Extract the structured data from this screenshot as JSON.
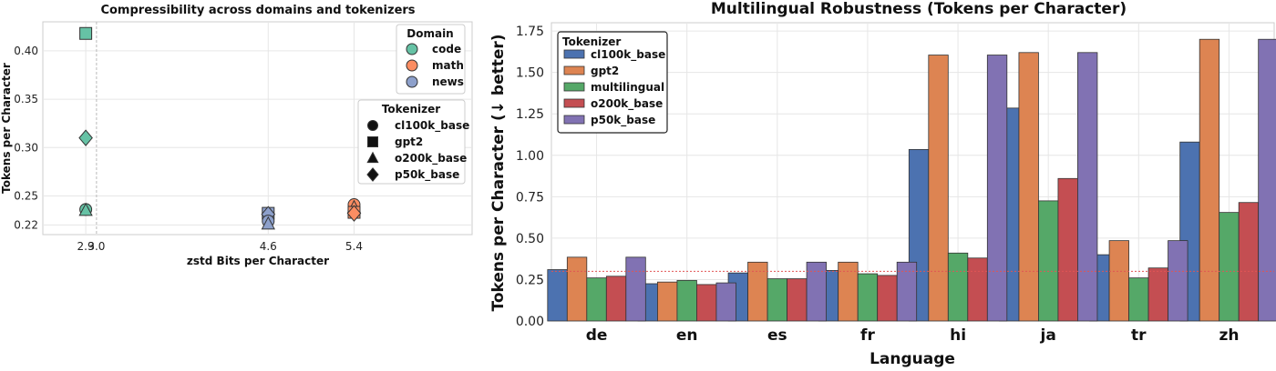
{
  "chart_data": [
    {
      "type": "scatter",
      "title": "Compressibility across domains and tokenizers",
      "xlabel": "zstd Bits per Character",
      "ylabel": "Tokens per Character",
      "xlim": [
        2.5,
        6.5
      ],
      "ylim": [
        0.21,
        0.43
      ],
      "xticks": [
        "2.9",
        "3.0",
        "4.6",
        "5.4"
      ],
      "xtick_values": [
        2.9,
        3.0,
        4.6,
        5.4
      ],
      "yticks": [
        "0.22",
        "0.25",
        "0.30",
        "0.35",
        "0.40"
      ],
      "ytick_values": [
        0.22,
        0.25,
        0.3,
        0.35,
        0.4
      ],
      "vline": 3.0,
      "domain_legend": {
        "title": "Domain",
        "items": [
          {
            "name": "code",
            "color": "#66c2a5"
          },
          {
            "name": "math",
            "color": "#fc8d62"
          },
          {
            "name": "news",
            "color": "#8da0cb"
          }
        ]
      },
      "tokenizer_legend": {
        "title": "Tokenizer",
        "items": [
          {
            "name": "cl100k_base",
            "marker": "circle"
          },
          {
            "name": "gpt2",
            "marker": "square"
          },
          {
            "name": "o200k_base",
            "marker": "triangle"
          },
          {
            "name": "p50k_base",
            "marker": "diamond"
          }
        ]
      },
      "points": [
        {
          "domain": "code",
          "tokenizer": "gpt2",
          "x": 2.9,
          "y": 0.418
        },
        {
          "domain": "code",
          "tokenizer": "p50k_base",
          "x": 2.9,
          "y": 0.31
        },
        {
          "domain": "code",
          "tokenizer": "cl100k_base",
          "x": 2.9,
          "y": 0.236
        },
        {
          "domain": "code",
          "tokenizer": "o200k_base",
          "x": 2.9,
          "y": 0.235
        },
        {
          "domain": "news",
          "tokenizer": "gpt2",
          "x": 4.6,
          "y": 0.232
        },
        {
          "domain": "news",
          "tokenizer": "p50k_base",
          "x": 4.6,
          "y": 0.231
        },
        {
          "domain": "news",
          "tokenizer": "cl100k_base",
          "x": 4.6,
          "y": 0.224
        },
        {
          "domain": "news",
          "tokenizer": "o200k_base",
          "x": 4.6,
          "y": 0.221
        },
        {
          "domain": "math",
          "tokenizer": "cl100k_base",
          "x": 5.4,
          "y": 0.241
        },
        {
          "domain": "math",
          "tokenizer": "o200k_base",
          "x": 5.4,
          "y": 0.238
        },
        {
          "domain": "math",
          "tokenizer": "gpt2",
          "x": 5.4,
          "y": 0.233
        },
        {
          "domain": "math",
          "tokenizer": "p50k_base",
          "x": 5.4,
          "y": 0.232
        }
      ]
    },
    {
      "type": "bar",
      "title": "Multilingual Robustness (Tokens per Character)",
      "xlabel": "Language",
      "ylabel": "Tokens per Character (↓ better)",
      "ylim": [
        0,
        1.8
      ],
      "yticks": [
        "0.00",
        "0.25",
        "0.50",
        "0.75",
        "1.00",
        "1.25",
        "1.50",
        "1.75"
      ],
      "ytick_values": [
        0,
        0.25,
        0.5,
        0.75,
        1.0,
        1.25,
        1.5,
        1.75
      ],
      "reference_line": 0.3,
      "categories": [
        "de",
        "en",
        "es",
        "fr",
        "hi",
        "ja",
        "tr",
        "zh"
      ],
      "legend_title": "Tokenizer",
      "series": [
        {
          "name": "cl100k_base",
          "color": "#4c72b0",
          "values": [
            0.31,
            0.225,
            0.29,
            0.305,
            1.035,
            1.285,
            0.4,
            1.08
          ]
        },
        {
          "name": "gpt2",
          "color": "#dd8452",
          "values": [
            0.385,
            0.235,
            0.355,
            0.355,
            1.605,
            1.62,
            0.485,
            1.7
          ]
        },
        {
          "name": "multilingual",
          "color": "#55a868",
          "values": [
            0.26,
            0.245,
            0.255,
            0.285,
            0.41,
            0.725,
            0.26,
            0.655
          ]
        },
        {
          "name": "o200k_base",
          "color": "#c44e52",
          "values": [
            0.27,
            0.22,
            0.255,
            0.275,
            0.38,
            0.86,
            0.32,
            0.715
          ]
        },
        {
          "name": "p50k_base",
          "color": "#8172b3",
          "values": [
            0.385,
            0.23,
            0.355,
            0.355,
            1.605,
            1.62,
            0.485,
            1.7
          ]
        }
      ]
    }
  ]
}
